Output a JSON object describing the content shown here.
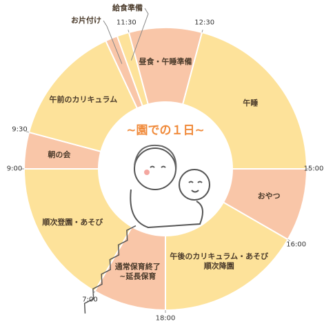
{
  "chart_data": {
    "type": "pie",
    "title": "~園での１日~",
    "categories": [
      "順次登園・あそび",
      "朝の会",
      "午前のカリキュラム",
      "お片付け",
      "給食準備",
      "昼食・午睡準備",
      "午睡",
      "おやつ",
      "午後のカリキュラム・あそび\n順次降園",
      "通常保育終了\n~延長保育"
    ],
    "values": [
      120,
      30,
      100,
      10,
      10,
      60,
      150,
      60,
      120,
      60
    ],
    "colors": [
      "#fde29a",
      "#f9c6a8",
      "#fde29a",
      "#f9c6a8",
      "#fde29a",
      "#f9c6a8",
      "#fde29a",
      "#f9c6a8",
      "#fde29a",
      "#f9c6a8"
    ],
    "ticks": [
      {
        "value": 0,
        "label": "7:00"
      },
      {
        "value": 120,
        "label": "9:00"
      },
      {
        "value": 150,
        "label": "9:30"
      },
      {
        "value": 270,
        "label": "11:30"
      },
      {
        "value": 330,
        "label": "12:30"
      },
      {
        "value": 480,
        "label": "15:00"
      },
      {
        "value": 540,
        "label": "16:00"
      },
      {
        "value": 660,
        "label": "18:00"
      }
    ]
  }
}
